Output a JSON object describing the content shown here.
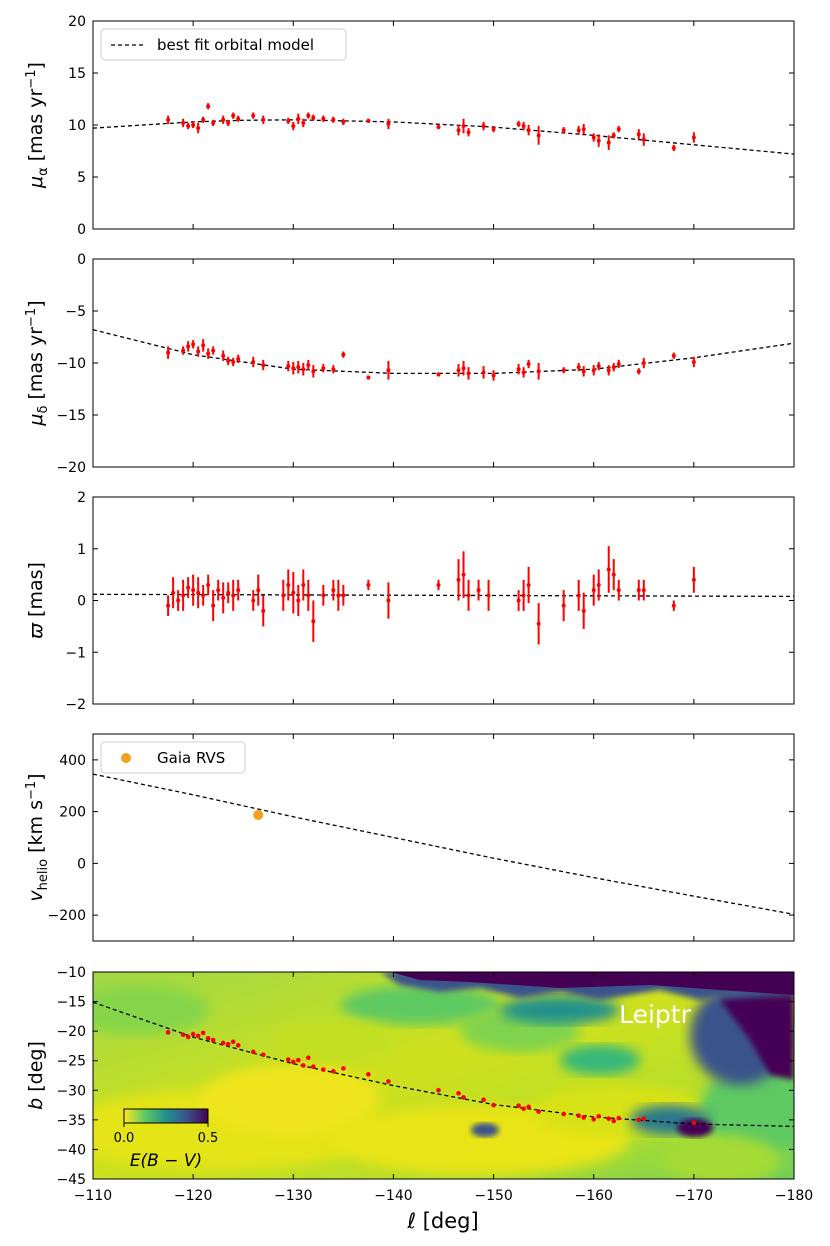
{
  "figure": {
    "xlabel": "ℓ [deg]",
    "xticks": [
      "−110",
      "−120",
      "−130",
      "−140",
      "−150",
      "−160",
      "−170",
      "−180"
    ]
  },
  "chart_data": [
    {
      "type": "scatter",
      "panel": "mu_alpha",
      "ylabel": "μ_α [mas yr⁻¹]",
      "ylabel_parts": {
        "sym": "μ",
        "sub": "α",
        "unit": " [mas yr",
        "sup": "−1",
        "close": "]"
      },
      "xlim": [
        -110,
        -180
      ],
      "ylim": [
        0,
        20
      ],
      "yticks": [
        "0",
        "5",
        "10",
        "15",
        "20"
      ],
      "legend": {
        "label": "best fit orbital model",
        "placement": "top-left"
      },
      "model": {
        "name": "best fit orbital model",
        "x": [
          -110,
          -120,
          -125,
          -130,
          -140,
          -150,
          -160,
          -170,
          -180
        ],
        "y": [
          9.7,
          10.3,
          10.45,
          10.5,
          10.3,
          9.8,
          9.0,
          8.1,
          7.2
        ]
      },
      "points": {
        "color": "#ff0000",
        "x": [
          -117.5,
          -119,
          -119.5,
          -120,
          -120.5,
          -121,
          -121.5,
          -122,
          -123,
          -123.5,
          -124,
          -124.5,
          -126,
          -127,
          -129.5,
          -130,
          -130.5,
          -131,
          -131.5,
          -132,
          -133,
          -134,
          -135,
          -137.5,
          -139.5,
          -144.5,
          -146.5,
          -147,
          -147.5,
          -149,
          -150,
          -152.5,
          -153,
          -153.5,
          -154.5,
          -157,
          -158.5,
          -159,
          -160,
          -160.5,
          -161.5,
          -162,
          -162.5,
          -164.5,
          -165,
          -168,
          -170
        ],
        "y": [
          10.5,
          10.2,
          9.9,
          10.0,
          9.7,
          10.5,
          11.8,
          10.2,
          10.5,
          10.2,
          10.9,
          10.6,
          10.9,
          10.5,
          10.4,
          9.9,
          10.6,
          10.2,
          10.9,
          10.7,
          10.6,
          10.5,
          10.3,
          10.4,
          10.1,
          9.8,
          9.5,
          9.9,
          9.3,
          9.9,
          9.6,
          10.1,
          9.9,
          9.5,
          9.0,
          9.5,
          9.5,
          9.6,
          8.8,
          8.5,
          8.3,
          9.0,
          9.6,
          9.1,
          8.6,
          7.8,
          8.8
        ],
        "err": [
          0.4,
          0.4,
          0.3,
          0.3,
          0.5,
          0.3,
          0.3,
          0.3,
          0.4,
          0.3,
          0.3,
          0.3,
          0.3,
          0.4,
          0.3,
          0.4,
          0.5,
          0.4,
          0.3,
          0.3,
          0.3,
          0.3,
          0.3,
          0.2,
          0.5,
          0.2,
          0.5,
          0.7,
          0.4,
          0.4,
          0.3,
          0.3,
          0.4,
          0.5,
          0.9,
          0.3,
          0.4,
          0.5,
          0.4,
          0.6,
          0.7,
          0.3,
          0.3,
          0.5,
          0.6,
          0.3,
          0.5
        ]
      }
    },
    {
      "type": "scatter",
      "panel": "mu_delta",
      "ylabel": "μ_δ [mas yr⁻¹]",
      "ylabel_parts": {
        "sym": "μ",
        "sub": "δ",
        "unit": " [mas yr",
        "sup": "−1",
        "close": "]"
      },
      "xlim": [
        -110,
        -180
      ],
      "ylim": [
        -20,
        0
      ],
      "yticks": [
        "−20",
        "−15",
        "−10",
        "−5",
        "0"
      ],
      "model": {
        "x": [
          -110,
          -120,
          -130,
          -140,
          -150,
          -160,
          -170,
          -180
        ],
        "y": [
          -6.8,
          -9.2,
          -10.6,
          -11.0,
          -11.0,
          -10.6,
          -9.5,
          -8.1
        ]
      },
      "points": {
        "color": "#ff0000",
        "x": [
          -117.5,
          -119,
          -119.5,
          -120,
          -120.5,
          -121,
          -121.5,
          -122,
          -123,
          -123.5,
          -124,
          -124.5,
          -126,
          -127,
          -129.5,
          -130,
          -130.5,
          -131,
          -131.5,
          -132,
          -133,
          -134,
          -135,
          -137.5,
          -139.5,
          -144.5,
          -146.5,
          -147,
          -147.5,
          -149,
          -150,
          -152.5,
          -153,
          -153.5,
          -154.5,
          -157,
          -158.5,
          -159,
          -160,
          -160.5,
          -161.5,
          -162,
          -162.5,
          -164.5,
          -165,
          -168,
          -170
        ],
        "y": [
          -9.0,
          -8.8,
          -8.4,
          -8.2,
          -8.9,
          -8.3,
          -9.1,
          -8.8,
          -9.3,
          -9.8,
          -9.9,
          -9.6,
          -9.9,
          -10.2,
          -10.3,
          -10.5,
          -10.4,
          -10.6,
          -10.2,
          -10.8,
          -10.5,
          -10.6,
          -9.2,
          -11.4,
          -10.7,
          -11.1,
          -10.7,
          -10.5,
          -11.0,
          -10.9,
          -11.2,
          -10.6,
          -10.9,
          -10.1,
          -10.8,
          -10.7,
          -10.4,
          -10.8,
          -10.7,
          -10.3,
          -10.7,
          -10.4,
          -10.1,
          -10.8,
          -10.0,
          -9.3,
          -9.9
        ],
        "err": [
          0.6,
          0.4,
          0.5,
          0.4,
          0.5,
          0.6,
          0.5,
          0.4,
          0.5,
          0.4,
          0.4,
          0.4,
          0.5,
          0.5,
          0.5,
          0.6,
          0.6,
          0.6,
          0.5,
          0.6,
          0.4,
          0.4,
          0.3,
          0.2,
          0.9,
          0.2,
          0.6,
          0.7,
          0.6,
          0.6,
          0.5,
          0.5,
          0.5,
          0.4,
          0.8,
          0.3,
          0.4,
          0.5,
          0.5,
          0.4,
          0.5,
          0.4,
          0.4,
          0.3,
          0.5,
          0.3,
          0.5
        ]
      }
    },
    {
      "type": "scatter",
      "panel": "parallax",
      "ylabel": "ϖ [mas]",
      "ylabel_parts": {
        "sym": "ϖ",
        "unit": " [mas]"
      },
      "xlim": [
        -110,
        -180
      ],
      "ylim": [
        -2,
        2
      ],
      "yticks": [
        "−2",
        "−1",
        "0",
        "1",
        "2"
      ],
      "model": {
        "x": [
          -110,
          -180
        ],
        "y": [
          0.12,
          0.08
        ]
      },
      "points": {
        "color": "#ff0000",
        "x": [
          -117.5,
          -118,
          -118.5,
          -119,
          -119.5,
          -120,
          -120.5,
          -121,
          -121.5,
          -122,
          -122.5,
          -123,
          -123.5,
          -124,
          -124.5,
          -126,
          -126.5,
          -127,
          -129,
          -129.5,
          -130,
          -130.5,
          -131,
          -131.5,
          -132,
          -133,
          -134,
          -134.5,
          -135,
          -137.5,
          -139.5,
          -144.5,
          -146.5,
          -147,
          -147.5,
          -148.5,
          -149.5,
          -152.5,
          -153,
          -153.5,
          -154.5,
          -157,
          -158.5,
          -159,
          -160,
          -160.5,
          -161.5,
          -162,
          -162.5,
          -164.5,
          -165,
          -168,
          -170
        ],
        "y": [
          -0.1,
          0.15,
          0.0,
          0.1,
          0.25,
          0.2,
          0.15,
          0.1,
          0.3,
          -0.1,
          0.2,
          0.05,
          0.15,
          0.1,
          0.2,
          0.0,
          0.2,
          -0.2,
          0.1,
          0.3,
          0.15,
          0.0,
          0.3,
          0.1,
          -0.4,
          0.1,
          0.2,
          0.1,
          0.1,
          0.3,
          0.0,
          0.3,
          0.4,
          0.5,
          0.1,
          0.2,
          0.1,
          0.0,
          0.1,
          0.3,
          -0.45,
          -0.1,
          0.1,
          -0.2,
          0.2,
          0.3,
          0.6,
          0.5,
          0.2,
          0.2,
          0.2,
          -0.1,
          0.4
        ],
        "err": [
          0.2,
          0.3,
          0.2,
          0.3,
          0.2,
          0.3,
          0.3,
          0.2,
          0.2,
          0.3,
          0.2,
          0.3,
          0.2,
          0.3,
          0.2,
          0.2,
          0.3,
          0.3,
          0.3,
          0.3,
          0.4,
          0.3,
          0.3,
          0.3,
          0.4,
          0.2,
          0.2,
          0.3,
          0.2,
          0.1,
          0.35,
          0.1,
          0.4,
          0.45,
          0.3,
          0.2,
          0.3,
          0.2,
          0.3,
          0.35,
          0.4,
          0.3,
          0.3,
          0.35,
          0.3,
          0.3,
          0.45,
          0.3,
          0.2,
          0.2,
          0.2,
          0.1,
          0.25
        ]
      }
    },
    {
      "type": "scatter",
      "panel": "vhelio",
      "ylabel": "v_helio [km s⁻¹]",
      "ylabel_parts": {
        "sym": "v",
        "sub": "helio",
        "unit": " [km s",
        "sup": "−1",
        "close": "]"
      },
      "xlim": [
        -110,
        -180
      ],
      "ylim": [
        -300,
        500
      ],
      "yticks": [
        "−200",
        "0",
        "200",
        "400"
      ],
      "ytick_values": [
        -200,
        0,
        200,
        400
      ],
      "legend": {
        "label": "Gaia RVS",
        "placement": "top-left"
      },
      "model": {
        "x": [
          -110,
          -120,
          -130,
          -140,
          -150,
          -160,
          -170,
          -180
        ],
        "y": [
          345,
          265,
          180,
          100,
          20,
          -55,
          -127,
          -197
        ]
      },
      "points": {
        "name": "Gaia RVS",
        "color": "#f5a01e",
        "x": [
          -126.5
        ],
        "y": [
          187
        ]
      }
    },
    {
      "type": "heatmap",
      "panel": "sky_map",
      "ylabel": "b [deg]",
      "ylabel_parts": {
        "sym": "b",
        "unit": " [deg]"
      },
      "xlim": [
        -110,
        -180
      ],
      "ylim": [
        -45,
        -10
      ],
      "yticks": [
        "−45",
        "−40",
        "−35",
        "−30",
        "−25",
        "−20",
        "−15",
        "−10"
      ],
      "annotation": "Leiptr",
      "colorbar": {
        "label": "E(B − V)",
        "ticks": [
          "0.0",
          "0.5"
        ],
        "range": [
          0,
          0.5
        ],
        "colormap": "viridis_r"
      },
      "track": {
        "x": [
          -110,
          -120,
          -130,
          -140,
          -150,
          -160,
          -170,
          -180
        ],
        "y": [
          -15.1,
          -21.0,
          -25.5,
          -29.2,
          -32.4,
          -34.5,
          -35.7,
          -36.1
        ]
      },
      "points": {
        "color": "#ff0000",
        "x": [
          -117.5,
          -119,
          -119.5,
          -120,
          -120.5,
          -121,
          -121.5,
          -122,
          -123,
          -123.5,
          -124,
          -124.5,
          -126,
          -127,
          -129.5,
          -130,
          -130.5,
          -131,
          -131.5,
          -132,
          -133,
          -134,
          -135,
          -137.5,
          -139.5,
          -144.5,
          -146.5,
          -147,
          -149,
          -150,
          -152.5,
          -153,
          -153.5,
          -154.5,
          -157,
          -158.5,
          -159,
          -160,
          -160.5,
          -161.5,
          -162,
          -162.5,
          -164.5,
          -165,
          -170
        ],
        "y": [
          -20.2,
          -20.6,
          -21.0,
          -20.5,
          -20.8,
          -20.3,
          -21.2,
          -21.5,
          -22.0,
          -22.2,
          -21.8,
          -22.4,
          -23.5,
          -24.0,
          -24.8,
          -25.2,
          -24.9,
          -25.8,
          -24.5,
          -26.0,
          -26.5,
          -26.8,
          -26.3,
          -27.3,
          -28.5,
          -30.0,
          -30.5,
          -31.2,
          -31.6,
          -32.5,
          -32.6,
          -33.1,
          -32.8,
          -33.6,
          -34.0,
          -34.3,
          -34.6,
          -34.9,
          -34.4,
          -34.8,
          -35.2,
          -34.7,
          -35.0,
          -34.8,
          -35.5
        ]
      }
    }
  ]
}
